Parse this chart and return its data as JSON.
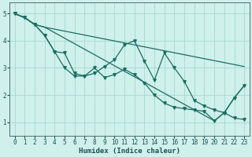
{
  "xlabel": "Humidex (Indice chaleur)",
  "xlim": [
    -0.5,
    23.5
  ],
  "ylim": [
    0.5,
    5.4
  ],
  "xticks": [
    0,
    1,
    2,
    3,
    4,
    5,
    6,
    7,
    8,
    9,
    10,
    11,
    12,
    13,
    14,
    15,
    16,
    17,
    18,
    19,
    20,
    21,
    22,
    23
  ],
  "yticks": [
    1,
    2,
    3,
    4,
    5
  ],
  "bg_color": "#cff0eb",
  "grid_color": "#9ed4cc",
  "line_color": "#1a6e62",
  "line_top_x": [
    0,
    1,
    2,
    3,
    23
  ],
  "line_top_y": [
    5.0,
    4.85,
    4.6,
    4.5,
    3.05
  ],
  "line_bottom_x": [
    0,
    1,
    2,
    3,
    20,
    21,
    22,
    23
  ],
  "line_bottom_y": [
    5.0,
    4.85,
    4.6,
    4.5,
    1.05,
    1.35,
    1.9,
    2.35
  ],
  "line1_x": [
    0,
    1,
    2,
    3,
    4,
    5,
    6,
    7,
    8,
    9,
    10,
    11,
    12,
    13,
    14,
    15,
    16,
    17,
    18,
    19,
    20,
    21,
    22,
    23
  ],
  "line1_y": [
    5.0,
    4.85,
    4.6,
    4.2,
    3.6,
    3.55,
    2.8,
    2.7,
    2.8,
    3.05,
    3.3,
    3.85,
    4.0,
    3.25,
    2.55,
    3.55,
    3.0,
    2.5,
    1.8,
    1.6,
    1.45,
    1.35,
    1.15,
    1.1
  ],
  "line2_x": [
    0,
    1,
    2,
    3,
    4,
    5,
    6,
    7,
    8,
    9,
    10,
    11,
    12,
    13,
    14,
    15,
    16,
    17,
    18,
    19,
    20,
    21,
    22,
    23
  ],
  "line2_y": [
    5.0,
    4.85,
    4.6,
    4.2,
    3.6,
    3.0,
    2.7,
    2.7,
    3.0,
    2.65,
    2.75,
    2.95,
    2.75,
    2.45,
    2.0,
    1.7,
    1.55,
    1.5,
    1.45,
    1.4,
    1.05,
    1.35,
    1.9,
    2.35
  ],
  "marker": "v",
  "markersize": 2.5,
  "linewidth": 0.9
}
